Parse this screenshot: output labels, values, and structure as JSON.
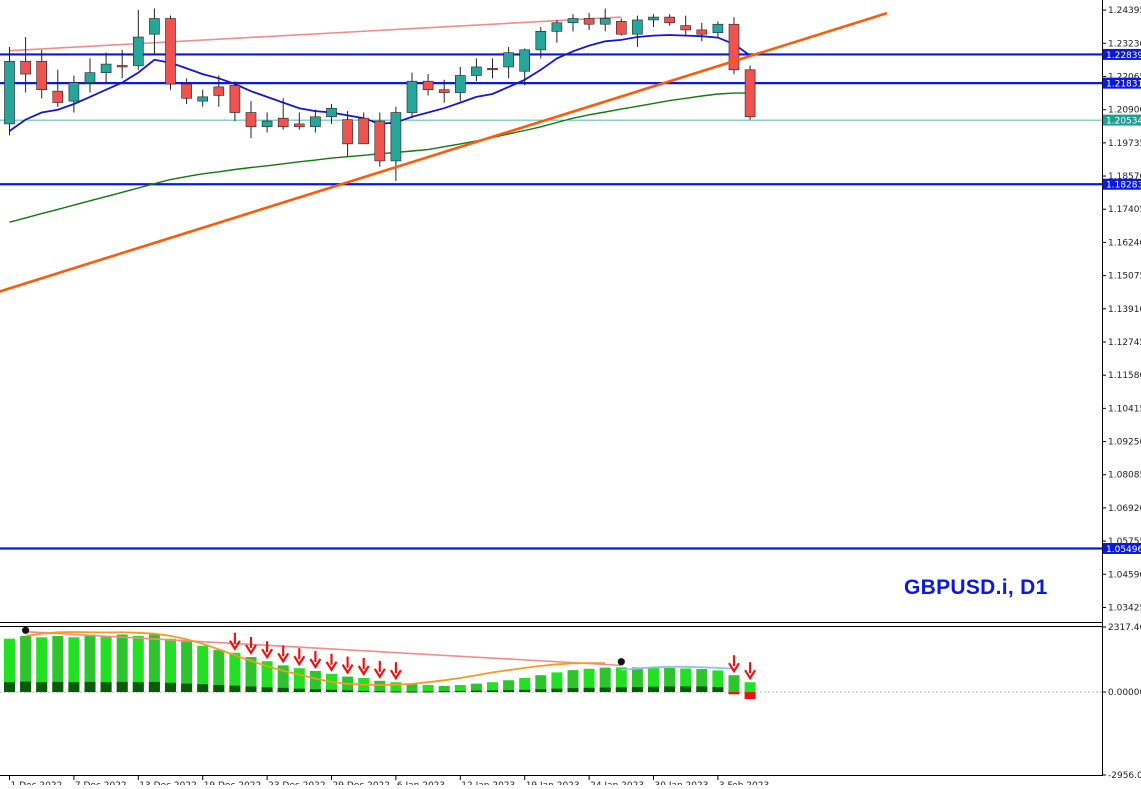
{
  "symbol": "GBPUSD.i, D1",
  "colors": {
    "background": "#ffffff",
    "bull": "#26a69a",
    "bear": "#ef5350",
    "frame": "#000000",
    "ma_fast": "#1515d8",
    "ma_slow": "#0f7a0f",
    "trendline": "#ff5a0a",
    "upper_line": "#f08c8c",
    "level_line": "#0a18e0",
    "current_line": "#20a090",
    "hist_bright": "#22e022",
    "hist_mid": "#2ec42e",
    "hist_dark": "#0a5a0a",
    "signal_orange": "#f59a23",
    "signal_blue": "#8fc3e8",
    "signal_pink": "#f08c8c",
    "arrow_red": "#ee1111"
  },
  "chart_data": [
    {
      "type": "candlestick",
      "title": "GBPUSD.i, D1",
      "y_ticks": [
        "1.24395",
        "1.23230",
        "1.22065",
        "1.20900",
        "1.19735",
        "1.18570",
        "1.17405",
        "1.16240",
        "1.15075",
        "1.13910",
        "1.12745",
        "1.11580",
        "1.10415",
        "1.09250",
        "1.08085",
        "1.06920",
        "1.05755",
        "1.04590",
        "1.03425"
      ],
      "ylim": [
        1.0295,
        1.2475
      ],
      "x_tick_labels": [
        "1 Dec 2022",
        "7 Dec 2022",
        "13 Dec 2022",
        "19 Dec 2022",
        "23 Dec 2022",
        "29 Dec 2022",
        "6 Jan 2023",
        "12 Jan 2023",
        "19 Jan 2023",
        "24 Jan 2023",
        "30 Jan 2023",
        "3 Feb 2023"
      ],
      "x_tick_positions": [
        0,
        4,
        8,
        12,
        16,
        20,
        24,
        28,
        32,
        36,
        40,
        44
      ],
      "candles": [
        {
          "o": 1.204,
          "h": 1.231,
          "l": 1.2,
          "c": 1.226
        },
        {
          "o": 1.226,
          "h": 1.2345,
          "l": 1.215,
          "c": 1.2215
        },
        {
          "o": 1.226,
          "h": 1.23,
          "l": 1.213,
          "c": 1.216
        },
        {
          "o": 1.2155,
          "h": 1.223,
          "l": 1.21,
          "c": 1.2115
        },
        {
          "o": 1.212,
          "h": 1.221,
          "l": 1.208,
          "c": 1.2185
        },
        {
          "o": 1.2185,
          "h": 1.227,
          "l": 1.215,
          "c": 1.222
        },
        {
          "o": 1.222,
          "h": 1.229,
          "l": 1.218,
          "c": 1.225
        },
        {
          "o": 1.2245,
          "h": 1.23,
          "l": 1.22,
          "c": 1.224
        },
        {
          "o": 1.2245,
          "h": 1.244,
          "l": 1.223,
          "c": 1.2345
        },
        {
          "o": 1.2355,
          "h": 1.2445,
          "l": 1.228,
          "c": 1.241
        },
        {
          "o": 1.241,
          "h": 1.242,
          "l": 1.216,
          "c": 1.218
        },
        {
          "o": 1.218,
          "h": 1.22,
          "l": 1.211,
          "c": 1.213
        },
        {
          "o": 1.212,
          "h": 1.216,
          "l": 1.21,
          "c": 1.2135
        },
        {
          "o": 1.217,
          "h": 1.221,
          "l": 1.21,
          "c": 1.214
        },
        {
          "o": 1.2175,
          "h": 1.219,
          "l": 1.205,
          "c": 1.208
        },
        {
          "o": 1.208,
          "h": 1.212,
          "l": 1.199,
          "c": 1.203
        },
        {
          "o": 1.203,
          "h": 1.208,
          "l": 1.201,
          "c": 1.205
        },
        {
          "o": 1.206,
          "h": 1.213,
          "l": 1.202,
          "c": 1.203
        },
        {
          "o": 1.204,
          "h": 1.208,
          "l": 1.202,
          "c": 1.203
        },
        {
          "o": 1.203,
          "h": 1.209,
          "l": 1.201,
          "c": 1.2065
        },
        {
          "o": 1.2065,
          "h": 1.211,
          "l": 1.204,
          "c": 1.2095
        },
        {
          "o": 1.2055,
          "h": 1.2085,
          "l": 1.1925,
          "c": 1.197
        },
        {
          "o": 1.206,
          "h": 1.208,
          "l": 1.197,
          "c": 1.197
        },
        {
          "o": 1.205,
          "h": 1.208,
          "l": 1.189,
          "c": 1.191
        },
        {
          "o": 1.191,
          "h": 1.21,
          "l": 1.184,
          "c": 1.208
        },
        {
          "o": 1.208,
          "h": 1.222,
          "l": 1.206,
          "c": 1.219
        },
        {
          "o": 1.219,
          "h": 1.2215,
          "l": 1.214,
          "c": 1.216
        },
        {
          "o": 1.216,
          "h": 1.2195,
          "l": 1.2115,
          "c": 1.215
        },
        {
          "o": 1.215,
          "h": 1.224,
          "l": 1.212,
          "c": 1.221
        },
        {
          "o": 1.221,
          "h": 1.227,
          "l": 1.219,
          "c": 1.224
        },
        {
          "o": 1.2235,
          "h": 1.227,
          "l": 1.22,
          "c": 1.223
        },
        {
          "o": 1.224,
          "h": 1.231,
          "l": 1.22,
          "c": 1.229
        },
        {
          "o": 1.2225,
          "h": 1.2305,
          "l": 1.2175,
          "c": 1.23
        },
        {
          "o": 1.23,
          "h": 1.238,
          "l": 1.227,
          "c": 1.2365
        },
        {
          "o": 1.2365,
          "h": 1.2405,
          "l": 1.2325,
          "c": 1.2395
        },
        {
          "o": 1.2395,
          "h": 1.2425,
          "l": 1.2365,
          "c": 1.241
        },
        {
          "o": 1.241,
          "h": 1.243,
          "l": 1.237,
          "c": 1.239
        },
        {
          "o": 1.239,
          "h": 1.2445,
          "l": 1.2365,
          "c": 1.241
        },
        {
          "o": 1.24,
          "h": 1.241,
          "l": 1.235,
          "c": 1.2355
        },
        {
          "o": 1.2355,
          "h": 1.242,
          "l": 1.231,
          "c": 1.2405
        },
        {
          "o": 1.2405,
          "h": 1.2425,
          "l": 1.238,
          "c": 1.2415
        },
        {
          "o": 1.2415,
          "h": 1.2425,
          "l": 1.2385,
          "c": 1.2395
        },
        {
          "o": 1.2385,
          "h": 1.242,
          "l": 1.235,
          "c": 1.237
        },
        {
          "o": 1.237,
          "h": 1.2395,
          "l": 1.233,
          "c": 1.2355
        },
        {
          "o": 1.236,
          "h": 1.24,
          "l": 1.234,
          "c": 1.239
        },
        {
          "o": 1.239,
          "h": 1.2415,
          "l": 1.2215,
          "c": 1.223
        },
        {
          "o": 1.223,
          "h": 1.2245,
          "l": 1.2055,
          "c": 1.2065
        }
      ],
      "ma_fast": [
        1.2015,
        1.2055,
        1.208,
        1.209,
        1.211,
        1.2135,
        1.216,
        1.2185,
        1.222,
        1.2265,
        1.2255,
        1.2235,
        1.2215,
        1.22,
        1.218,
        1.2155,
        1.2135,
        1.2115,
        1.2095,
        1.2085,
        1.208,
        1.207,
        1.206,
        1.204,
        1.2045,
        1.2065,
        1.208,
        1.2095,
        1.2115,
        1.2135,
        1.2145,
        1.217,
        1.2195,
        1.223,
        1.227,
        1.2295,
        1.2315,
        1.233,
        1.2335,
        1.2345,
        1.235,
        1.2352,
        1.235,
        1.2348,
        1.2343,
        1.232,
        1.228
      ],
      "ma_slow": [
        1.1695,
        1.171,
        1.1725,
        1.174,
        1.1755,
        1.177,
        1.1785,
        1.18,
        1.1815,
        1.183,
        1.1845,
        1.1855,
        1.1865,
        1.1872,
        1.188,
        1.1887,
        1.1893,
        1.19,
        1.1907,
        1.1913,
        1.192,
        1.1925,
        1.193,
        1.1935,
        1.194,
        1.1945,
        1.195,
        1.196,
        1.197,
        1.198,
        1.1992,
        1.2005,
        1.2017,
        1.203,
        1.2045,
        1.206,
        1.2072,
        1.2082,
        1.2092,
        1.2102,
        1.2112,
        1.2122,
        1.213,
        1.2138,
        1.2145,
        1.2148,
        1.2148
      ],
      "horizontal_levels": [
        {
          "price": 1.22839,
          "label": "1.22839"
        },
        {
          "price": 1.21831,
          "label": "1.21831"
        },
        {
          "price": 1.18283,
          "label": "1.18283"
        },
        {
          "price": 1.05496,
          "label": "1.05496"
        }
      ],
      "current_price": {
        "price": 1.20534,
        "label": "1.20534"
      },
      "trendline": {
        "from": {
          "x": -1,
          "y": 1.1445
        },
        "to": {
          "x": 54.5,
          "y": 1.2429
        }
      },
      "upper_line": {
        "from": {
          "x": 0,
          "y": 1.2297
        },
        "to": {
          "x": 38,
          "y": 1.2415
        }
      }
    },
    {
      "type": "bar",
      "title": "",
      "y_ticks": [
        "2317.46",
        "0.00000",
        "-2956.09"
      ],
      "ylim": [
        -2956.09,
        2317.46
      ],
      "histogram": [
        1900,
        2000,
        1950,
        2000,
        1950,
        2050,
        2000,
        2050,
        2000,
        2050,
        1900,
        1800,
        1650,
        1500,
        1400,
        1250,
        1100,
        950,
        850,
        750,
        650,
        550,
        500,
        400,
        350,
        300,
        250,
        220,
        250,
        300,
        350,
        420,
        500,
        600,
        700,
        780,
        830,
        870,
        880,
        880,
        880,
        860,
        840,
        820,
        770,
        600,
        350
      ],
      "hist_dark": [
        350,
        370,
        350,
        360,
        350,
        360,
        350,
        360,
        350,
        360,
        330,
        300,
        280,
        250,
        230,
        200,
        170,
        150,
        120,
        100,
        80,
        60,
        40,
        30,
        20,
        15,
        20,
        30,
        40,
        50,
        60,
        70,
        80,
        100,
        120,
        140,
        150,
        160,
        170,
        180,
        190,
        200,
        200,
        200,
        180,
        -80,
        -250
      ],
      "signal_orange": [
        2000,
        2080,
        2130,
        2140,
        2130,
        2120,
        2130,
        2110,
        2080,
        2000,
        1880,
        1720,
        1520,
        1310,
        1110,
        920,
        760,
        620,
        480,
        360,
        290,
        260,
        250,
        260,
        290,
        350,
        420,
        500,
        600,
        700,
        780,
        860,
        930,
        990,
        1020,
        1030,
        1030
      ],
      "signal_orange_start": 1,
      "signal_blue": [
        790,
        840,
        880,
        900,
        900,
        880,
        860,
        830
      ],
      "signal_blue_start": 38,
      "signal_pink": {
        "from": {
          "x": 1,
          "y": 2150
        },
        "to": {
          "x": 38,
          "y": 950
        }
      },
      "down_arrows": [
        14,
        15,
        16,
        17,
        18,
        19,
        20,
        21,
        22,
        23,
        24,
        45,
        46
      ],
      "circle_markers": [
        1,
        38
      ]
    }
  ]
}
